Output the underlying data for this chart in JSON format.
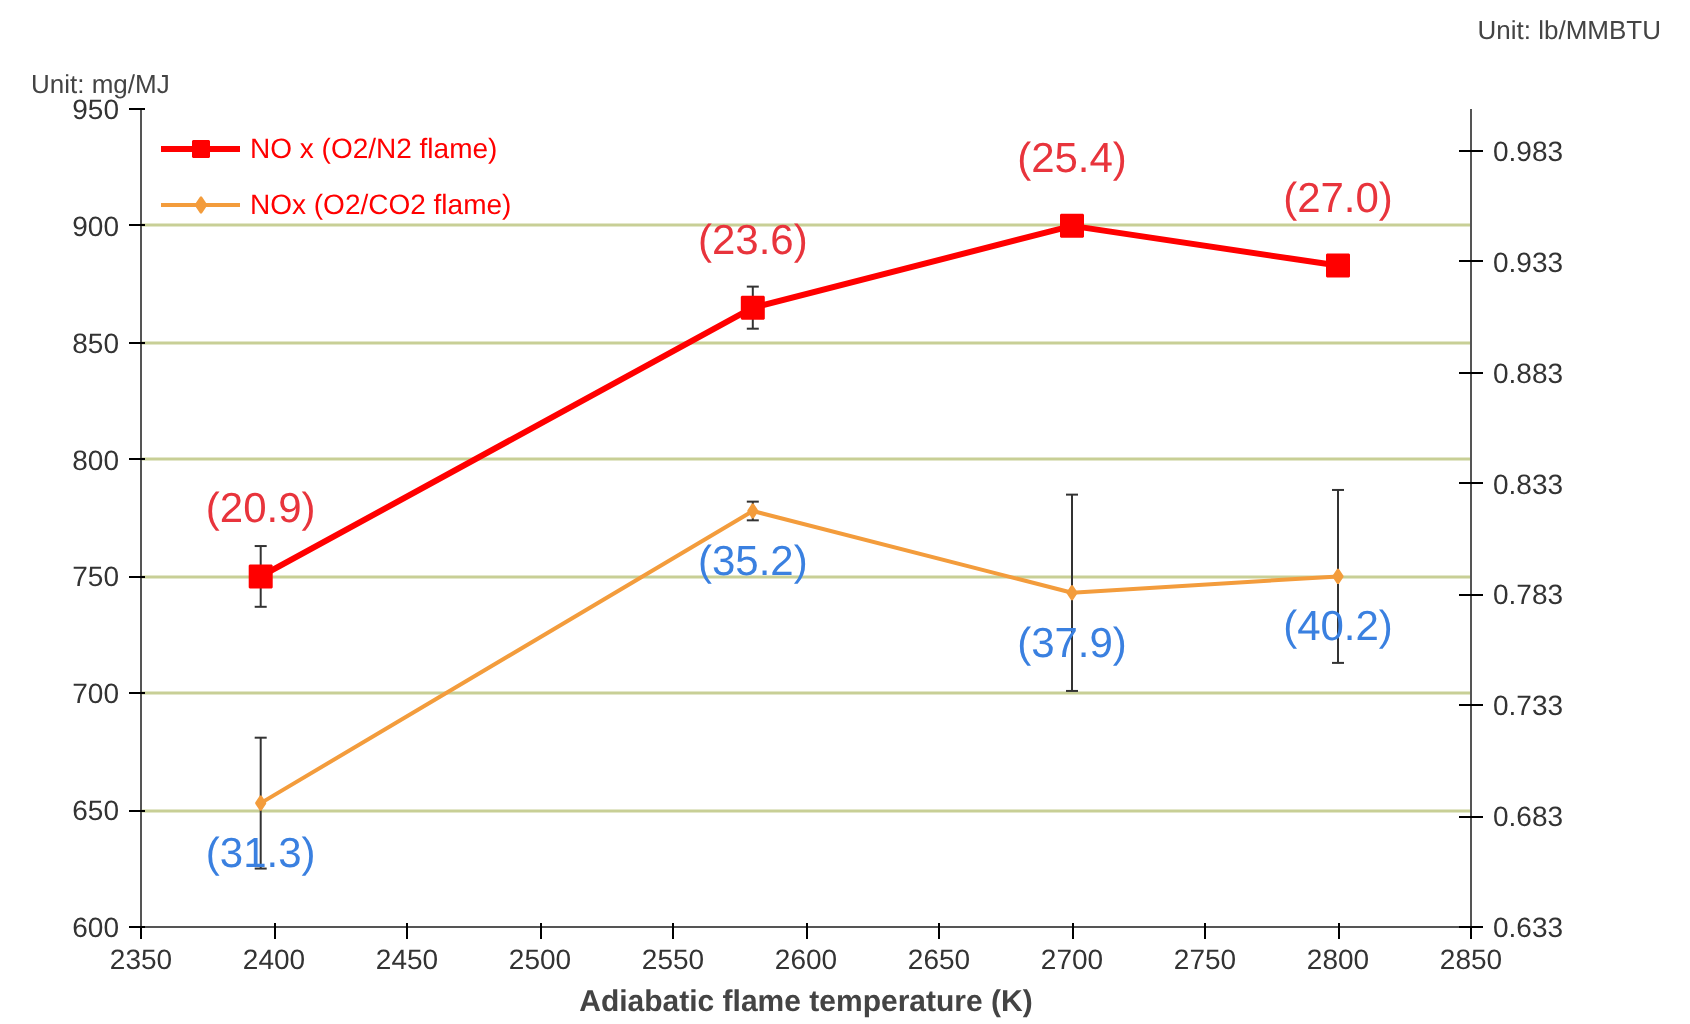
{
  "chart_data": {
    "type": "line",
    "xlabel": "Adiabatic flame temperature (K)",
    "ylabel": "Unit: mg/MJ",
    "y2label": "Unit: lb/MMBTU",
    "x": [
      2395,
      2580,
      2700,
      2800
    ],
    "series": [
      {
        "name": "NO x (O2/N2 flame)",
        "color": "#ff0000",
        "marker": "square",
        "values": [
          750,
          865,
          900,
          883
        ],
        "errors": [
          13,
          9,
          null,
          null
        ]
      },
      {
        "name": "NOx (O2/CO2 flame)",
        "color": "#f39c3c",
        "marker": "diamond",
        "values": [
          653,
          778,
          743,
          750
        ],
        "errors": [
          28,
          4,
          42,
          37
        ]
      }
    ],
    "annotations": [
      {
        "text": "(20.9)",
        "x": 2395,
        "y": 750
      },
      {
        "text": "(23.6)",
        "x": 2580,
        "y": 865
      },
      {
        "text": "(25.4)",
        "x": 2700,
        "y": 900
      },
      {
        "text": "(27.0)",
        "x": 2800,
        "y": 883
      },
      {
        "text": "(31.3)",
        "x": 2395,
        "y": 653
      },
      {
        "text": "(35.2)",
        "x": 2580,
        "y": 778
      },
      {
        "text": "(37.9)",
        "x": 2700,
        "y": 743
      },
      {
        "text": "(40.2)",
        "x": 2800,
        "y": 750
      }
    ],
    "xlim": [
      2350,
      2850
    ],
    "xticks": [
      2350,
      2400,
      2450,
      2500,
      2550,
      2600,
      2650,
      2700,
      2750,
      2800,
      2850
    ],
    "ylim": [
      600,
      950
    ],
    "yticks": [
      600,
      650,
      700,
      750,
      800,
      850,
      900,
      950
    ],
    "y2lim": [
      0.633,
      1.002
    ],
    "y2ticks": [
      0.633,
      0.683,
      0.733,
      0.783,
      0.833,
      0.883,
      0.933,
      0.983
    ],
    "grid": "y",
    "legend": "top left",
    "line_style": "solid"
  }
}
